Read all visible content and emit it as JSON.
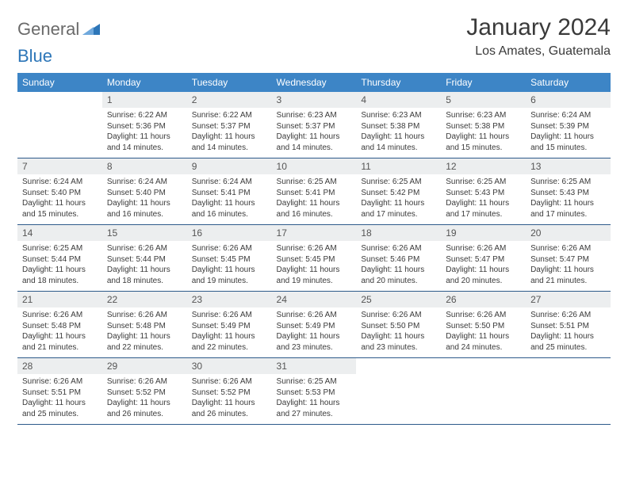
{
  "logo": {
    "text1": "General",
    "text2": "Blue"
  },
  "title": "January 2024",
  "location": "Los Amates, Guatemala",
  "colors": {
    "header_bg": "#3d85c6",
    "header_text": "#ffffff",
    "daynum_bg": "#eceeef",
    "border": "#2d5a8a",
    "logo_gray": "#6a6a6a",
    "logo_blue": "#2d76b8"
  },
  "weekdays": [
    "Sunday",
    "Monday",
    "Tuesday",
    "Wednesday",
    "Thursday",
    "Friday",
    "Saturday"
  ],
  "weeks": [
    [
      {
        "n": "",
        "sunrise": "",
        "sunset": "",
        "daylight": ""
      },
      {
        "n": "1",
        "sunrise": "Sunrise: 6:22 AM",
        "sunset": "Sunset: 5:36 PM",
        "daylight": "Daylight: 11 hours and 14 minutes."
      },
      {
        "n": "2",
        "sunrise": "Sunrise: 6:22 AM",
        "sunset": "Sunset: 5:37 PM",
        "daylight": "Daylight: 11 hours and 14 minutes."
      },
      {
        "n": "3",
        "sunrise": "Sunrise: 6:23 AM",
        "sunset": "Sunset: 5:37 PM",
        "daylight": "Daylight: 11 hours and 14 minutes."
      },
      {
        "n": "4",
        "sunrise": "Sunrise: 6:23 AM",
        "sunset": "Sunset: 5:38 PM",
        "daylight": "Daylight: 11 hours and 14 minutes."
      },
      {
        "n": "5",
        "sunrise": "Sunrise: 6:23 AM",
        "sunset": "Sunset: 5:38 PM",
        "daylight": "Daylight: 11 hours and 15 minutes."
      },
      {
        "n": "6",
        "sunrise": "Sunrise: 6:24 AM",
        "sunset": "Sunset: 5:39 PM",
        "daylight": "Daylight: 11 hours and 15 minutes."
      }
    ],
    [
      {
        "n": "7",
        "sunrise": "Sunrise: 6:24 AM",
        "sunset": "Sunset: 5:40 PM",
        "daylight": "Daylight: 11 hours and 15 minutes."
      },
      {
        "n": "8",
        "sunrise": "Sunrise: 6:24 AM",
        "sunset": "Sunset: 5:40 PM",
        "daylight": "Daylight: 11 hours and 16 minutes."
      },
      {
        "n": "9",
        "sunrise": "Sunrise: 6:24 AM",
        "sunset": "Sunset: 5:41 PM",
        "daylight": "Daylight: 11 hours and 16 minutes."
      },
      {
        "n": "10",
        "sunrise": "Sunrise: 6:25 AM",
        "sunset": "Sunset: 5:41 PM",
        "daylight": "Daylight: 11 hours and 16 minutes."
      },
      {
        "n": "11",
        "sunrise": "Sunrise: 6:25 AM",
        "sunset": "Sunset: 5:42 PM",
        "daylight": "Daylight: 11 hours and 17 minutes."
      },
      {
        "n": "12",
        "sunrise": "Sunrise: 6:25 AM",
        "sunset": "Sunset: 5:43 PM",
        "daylight": "Daylight: 11 hours and 17 minutes."
      },
      {
        "n": "13",
        "sunrise": "Sunrise: 6:25 AM",
        "sunset": "Sunset: 5:43 PM",
        "daylight": "Daylight: 11 hours and 17 minutes."
      }
    ],
    [
      {
        "n": "14",
        "sunrise": "Sunrise: 6:25 AM",
        "sunset": "Sunset: 5:44 PM",
        "daylight": "Daylight: 11 hours and 18 minutes."
      },
      {
        "n": "15",
        "sunrise": "Sunrise: 6:26 AM",
        "sunset": "Sunset: 5:44 PM",
        "daylight": "Daylight: 11 hours and 18 minutes."
      },
      {
        "n": "16",
        "sunrise": "Sunrise: 6:26 AM",
        "sunset": "Sunset: 5:45 PM",
        "daylight": "Daylight: 11 hours and 19 minutes."
      },
      {
        "n": "17",
        "sunrise": "Sunrise: 6:26 AM",
        "sunset": "Sunset: 5:45 PM",
        "daylight": "Daylight: 11 hours and 19 minutes."
      },
      {
        "n": "18",
        "sunrise": "Sunrise: 6:26 AM",
        "sunset": "Sunset: 5:46 PM",
        "daylight": "Daylight: 11 hours and 20 minutes."
      },
      {
        "n": "19",
        "sunrise": "Sunrise: 6:26 AM",
        "sunset": "Sunset: 5:47 PM",
        "daylight": "Daylight: 11 hours and 20 minutes."
      },
      {
        "n": "20",
        "sunrise": "Sunrise: 6:26 AM",
        "sunset": "Sunset: 5:47 PM",
        "daylight": "Daylight: 11 hours and 21 minutes."
      }
    ],
    [
      {
        "n": "21",
        "sunrise": "Sunrise: 6:26 AM",
        "sunset": "Sunset: 5:48 PM",
        "daylight": "Daylight: 11 hours and 21 minutes."
      },
      {
        "n": "22",
        "sunrise": "Sunrise: 6:26 AM",
        "sunset": "Sunset: 5:48 PM",
        "daylight": "Daylight: 11 hours and 22 minutes."
      },
      {
        "n": "23",
        "sunrise": "Sunrise: 6:26 AM",
        "sunset": "Sunset: 5:49 PM",
        "daylight": "Daylight: 11 hours and 22 minutes."
      },
      {
        "n": "24",
        "sunrise": "Sunrise: 6:26 AM",
        "sunset": "Sunset: 5:49 PM",
        "daylight": "Daylight: 11 hours and 23 minutes."
      },
      {
        "n": "25",
        "sunrise": "Sunrise: 6:26 AM",
        "sunset": "Sunset: 5:50 PM",
        "daylight": "Daylight: 11 hours and 23 minutes."
      },
      {
        "n": "26",
        "sunrise": "Sunrise: 6:26 AM",
        "sunset": "Sunset: 5:50 PM",
        "daylight": "Daylight: 11 hours and 24 minutes."
      },
      {
        "n": "27",
        "sunrise": "Sunrise: 6:26 AM",
        "sunset": "Sunset: 5:51 PM",
        "daylight": "Daylight: 11 hours and 25 minutes."
      }
    ],
    [
      {
        "n": "28",
        "sunrise": "Sunrise: 6:26 AM",
        "sunset": "Sunset: 5:51 PM",
        "daylight": "Daylight: 11 hours and 25 minutes."
      },
      {
        "n": "29",
        "sunrise": "Sunrise: 6:26 AM",
        "sunset": "Sunset: 5:52 PM",
        "daylight": "Daylight: 11 hours and 26 minutes."
      },
      {
        "n": "30",
        "sunrise": "Sunrise: 6:26 AM",
        "sunset": "Sunset: 5:52 PM",
        "daylight": "Daylight: 11 hours and 26 minutes."
      },
      {
        "n": "31",
        "sunrise": "Sunrise: 6:25 AM",
        "sunset": "Sunset: 5:53 PM",
        "daylight": "Daylight: 11 hours and 27 minutes."
      },
      {
        "n": "",
        "sunrise": "",
        "sunset": "",
        "daylight": ""
      },
      {
        "n": "",
        "sunrise": "",
        "sunset": "",
        "daylight": ""
      },
      {
        "n": "",
        "sunrise": "",
        "sunset": "",
        "daylight": ""
      }
    ]
  ]
}
